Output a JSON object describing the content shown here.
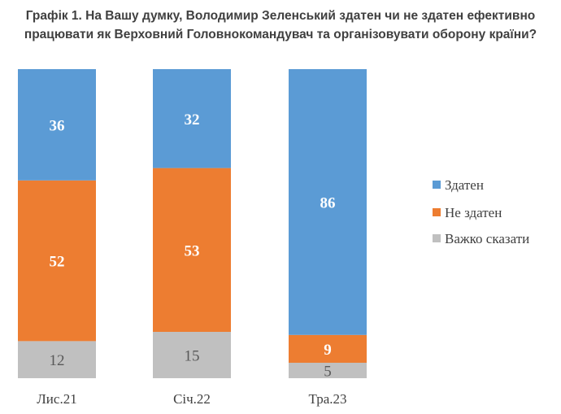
{
  "chart_data": {
    "type": "bar",
    "stacked": true,
    "title_line1": "Графік 1. На Вашу думку, Володимир Зеленський здатен чи не здатен ефективно",
    "title_line2": "працювати як Верховний Головнокомандувач та організовувати оборону країни?",
    "categories": [
      "Лис.21",
      "Січ.22",
      "Тра.23"
    ],
    "series": [
      {
        "name": "Здатен",
        "values": [
          36,
          32,
          86
        ],
        "color": "#5b9bd5"
      },
      {
        "name": "Не здатен",
        "values": [
          52,
          53,
          9
        ],
        "color": "#ed7d31"
      },
      {
        "name": "Важко сказати",
        "values": [
          12,
          15,
          5
        ],
        "color": "#c0c0c0"
      }
    ],
    "ylim": [
      0,
      100
    ],
    "grid": false,
    "legend_position": "right"
  }
}
